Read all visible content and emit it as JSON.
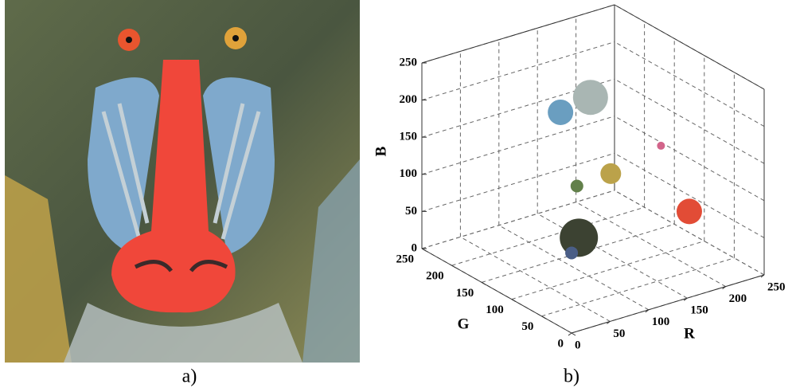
{
  "labels": [
    "a)",
    "b)"
  ],
  "chart_data": {
    "type": "bubble3d",
    "x_label": "R",
    "y_label": "G",
    "z_label": "B",
    "x": [
      60,
      215,
      110,
      180,
      183,
      70,
      108,
      186
    ],
    "y": [
      65,
      80,
      160,
      200,
      170,
      90,
      130,
      90
    ],
    "z": [
      80,
      60,
      190,
      170,
      80,
      45,
      105,
      153
    ],
    "sizes": [
      24,
      16,
      16,
      22,
      13,
      8,
      8,
      5
    ],
    "colors": [
      "#3c4232",
      "#e24c36",
      "#6a9ec0",
      "#a9b6b3",
      "#bba24a",
      "#4a5e86",
      "#62804a",
      "#d2648a"
    ],
    "xlim": [
      0,
      250
    ],
    "ylim": [
      0,
      250
    ],
    "zlim": [
      0,
      250
    ],
    "xticks": [
      0,
      50,
      100,
      150,
      200,
      250
    ],
    "yticks": [
      0,
      50,
      100,
      150,
      200,
      250
    ],
    "zticks": [
      0,
      50,
      100,
      150,
      200,
      250
    ],
    "grid": true
  }
}
